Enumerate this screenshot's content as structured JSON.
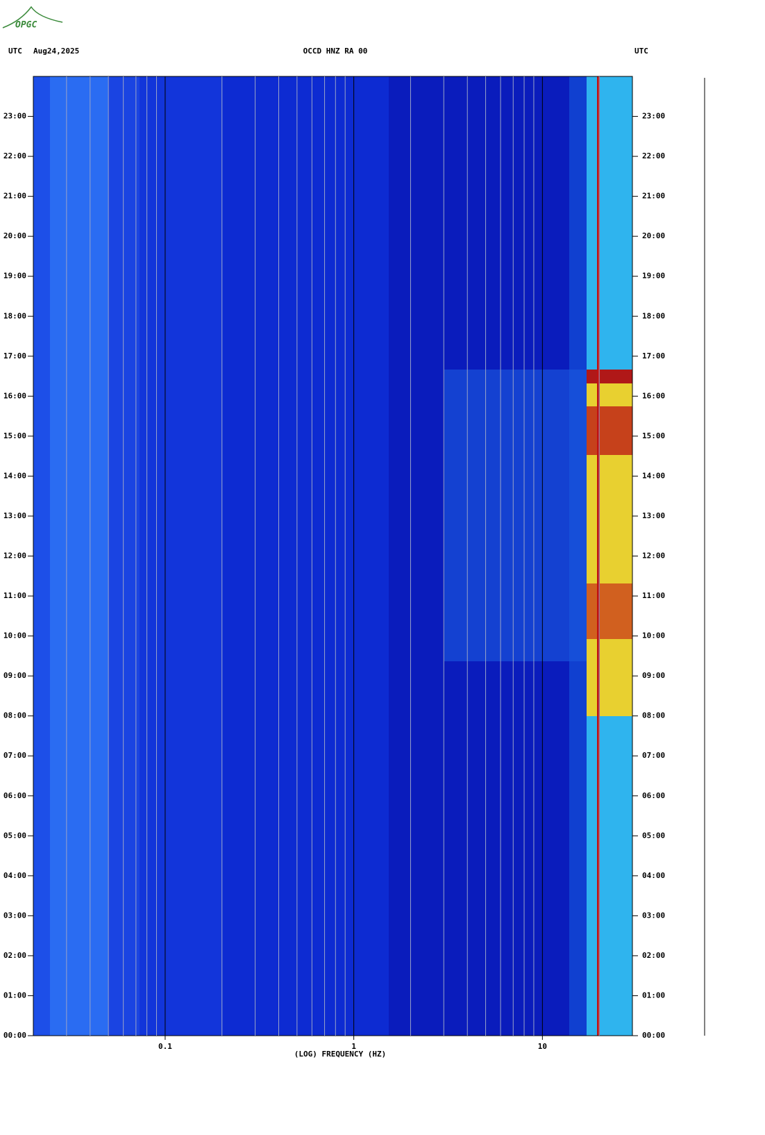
{
  "logo": "OPGC",
  "chart_data": {
    "type": "spectrogram",
    "header_left_zone": "UTC",
    "header_date": "Aug24,2025",
    "title": "OCCD HNZ RA 00",
    "header_right_zone": "UTC",
    "x_label": "(LOG) FREQUENCY (HZ)",
    "x_log": true,
    "xlim": [
      0.02,
      30
    ],
    "xticks": [
      0.1,
      1,
      10
    ],
    "xminor_ticks": [
      0.03,
      0.04,
      0.05,
      0.06,
      0.07,
      0.08,
      0.09,
      0.2,
      0.3,
      0.4,
      0.5,
      0.6,
      0.7,
      0.8,
      0.9,
      2,
      3,
      4,
      5,
      6,
      7,
      8,
      9,
      20
    ],
    "ylim": [
      0,
      24
    ],
    "yticks": [
      {
        "value": 0,
        "label": "00:00"
      },
      {
        "value": 1,
        "label": "01:00"
      },
      {
        "value": 2,
        "label": "02:00"
      },
      {
        "value": 3,
        "label": "03:00"
      },
      {
        "value": 4,
        "label": "04:00"
      },
      {
        "value": 5,
        "label": "05:00"
      },
      {
        "value": 6,
        "label": "06:00"
      },
      {
        "value": 7,
        "label": "07:00"
      },
      {
        "value": 8,
        "label": "08:00"
      },
      {
        "value": 9,
        "label": "09:00"
      },
      {
        "value": 10,
        "label": "10:00"
      },
      {
        "value": 11,
        "label": "11:00"
      },
      {
        "value": 12,
        "label": "12:00"
      },
      {
        "value": 13,
        "label": "13:00"
      },
      {
        "value": 14,
        "label": "14:00"
      },
      {
        "value": 15,
        "label": "15:00"
      },
      {
        "value": 16,
        "label": "16:00"
      },
      {
        "value": 17,
        "label": "17:00"
      },
      {
        "value": 18,
        "label": "18:00"
      },
      {
        "value": 19,
        "label": "19:00"
      },
      {
        "value": 20,
        "label": "20:00"
      },
      {
        "value": 21,
        "label": "21:00"
      },
      {
        "value": 22,
        "label": "22:00"
      },
      {
        "value": 23,
        "label": "23:00"
      }
    ]
  }
}
